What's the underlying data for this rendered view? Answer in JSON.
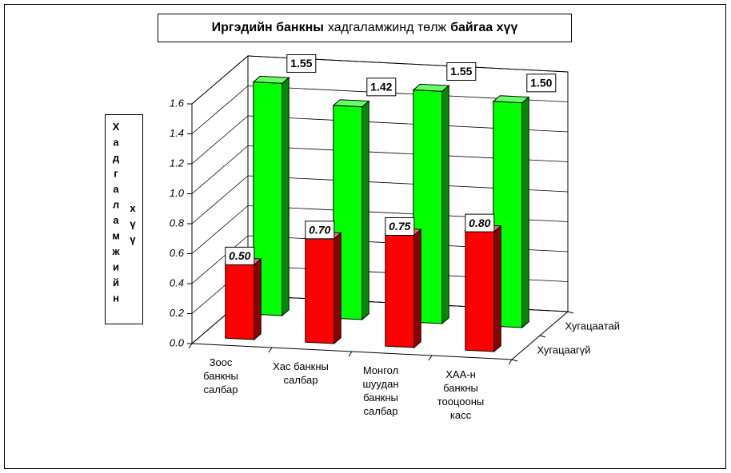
{
  "chart_data": {
    "type": "bar3d",
    "title": [
      "Иргэдийн банкны",
      "хадгаламжинд төлж",
      "байгаа хүү"
    ],
    "ylabel": [
      "Хадгаламжийн",
      "хүү"
    ],
    "categories": [
      [
        "Зоос",
        "банкны",
        "салбар"
      ],
      [
        "Хас  банкны",
        "салбар"
      ],
      [
        "Монгол",
        "шуудан",
        "банкны",
        "салбар"
      ],
      [
        "ХАА-н",
        "банкны",
        "тооцооны",
        "касс"
      ]
    ],
    "series": [
      {
        "name": "Хугацаагүй",
        "color": "#ff0000",
        "values": [
          0.5,
          0.7,
          0.75,
          0.8
        ],
        "value_labels": [
          "0.50",
          "0.70",
          "0.75",
          "0.80"
        ]
      },
      {
        "name": "Хугацаатай",
        "color": "#00ff00",
        "values": [
          1.55,
          1.42,
          1.55,
          1.5
        ],
        "value_labels": [
          "1.55",
          "1.42",
          "1.55",
          "1.50"
        ]
      }
    ],
    "ylim": [
      0,
      1.6
    ],
    "yticks": [
      {
        "value": 0,
        "label": "0.0"
      },
      0.2,
      0.4,
      0.6,
      0.8,
      {
        "value": 1,
        "label": "1.0"
      },
      1.2,
      1.4,
      1.6
    ],
    "grid": true
  }
}
